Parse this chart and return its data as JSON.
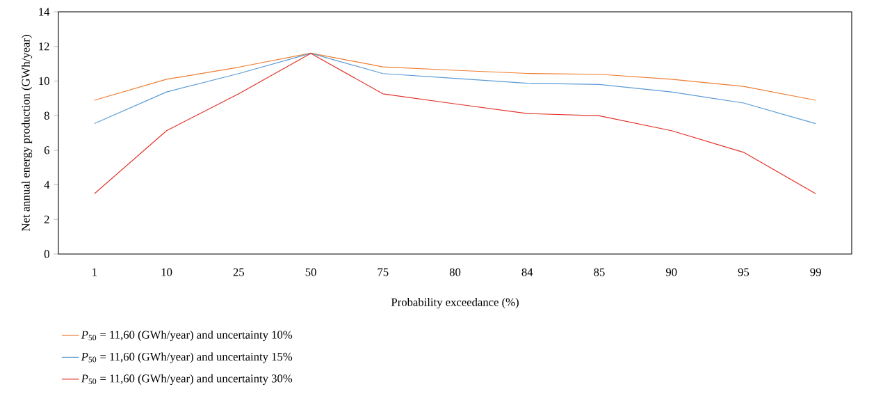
{
  "chart_data": {
    "type": "line",
    "xlabel": "Probability exceedance (%)",
    "ylabel": "Net annual energy production (GWh/year)",
    "categories": [
      "1",
      "10",
      "25",
      "50",
      "75",
      "80",
      "84",
      "85",
      "90",
      "95",
      "99"
    ],
    "ylim": [
      0,
      14
    ],
    "yticks": [
      0,
      2,
      4,
      6,
      8,
      10,
      12,
      14
    ],
    "grid": false,
    "legend": "bottom left",
    "line_style": "solid",
    "marker": "none",
    "series": [
      {
        "name": "*P*$_{50}$ = 11,60 (GWh/year) and uncertainty 10%",
        "color": "#ed7d31",
        "values": [
          8.89,
          10.1,
          10.8,
          11.61,
          10.82,
          10.62,
          10.44,
          10.39,
          10.1,
          9.69,
          8.89
        ]
      },
      {
        "name": "*P*$_{50}$ = 11,60 (GWh/year) and uncertainty 15%",
        "color": "#5b9bd5",
        "values": [
          7.54,
          9.37,
          10.43,
          11.6,
          10.43,
          10.15,
          9.87,
          9.8,
          9.37,
          8.73,
          7.54
        ]
      },
      {
        "name": "*P*$_{50}$ = 11,60 (GWh/year) and uncertainty 30%",
        "color": "#e03127",
        "values": [
          3.49,
          7.13,
          9.26,
          11.6,
          9.26,
          8.68,
          8.12,
          7.99,
          7.13,
          5.88,
          3.49
        ]
      }
    ]
  }
}
